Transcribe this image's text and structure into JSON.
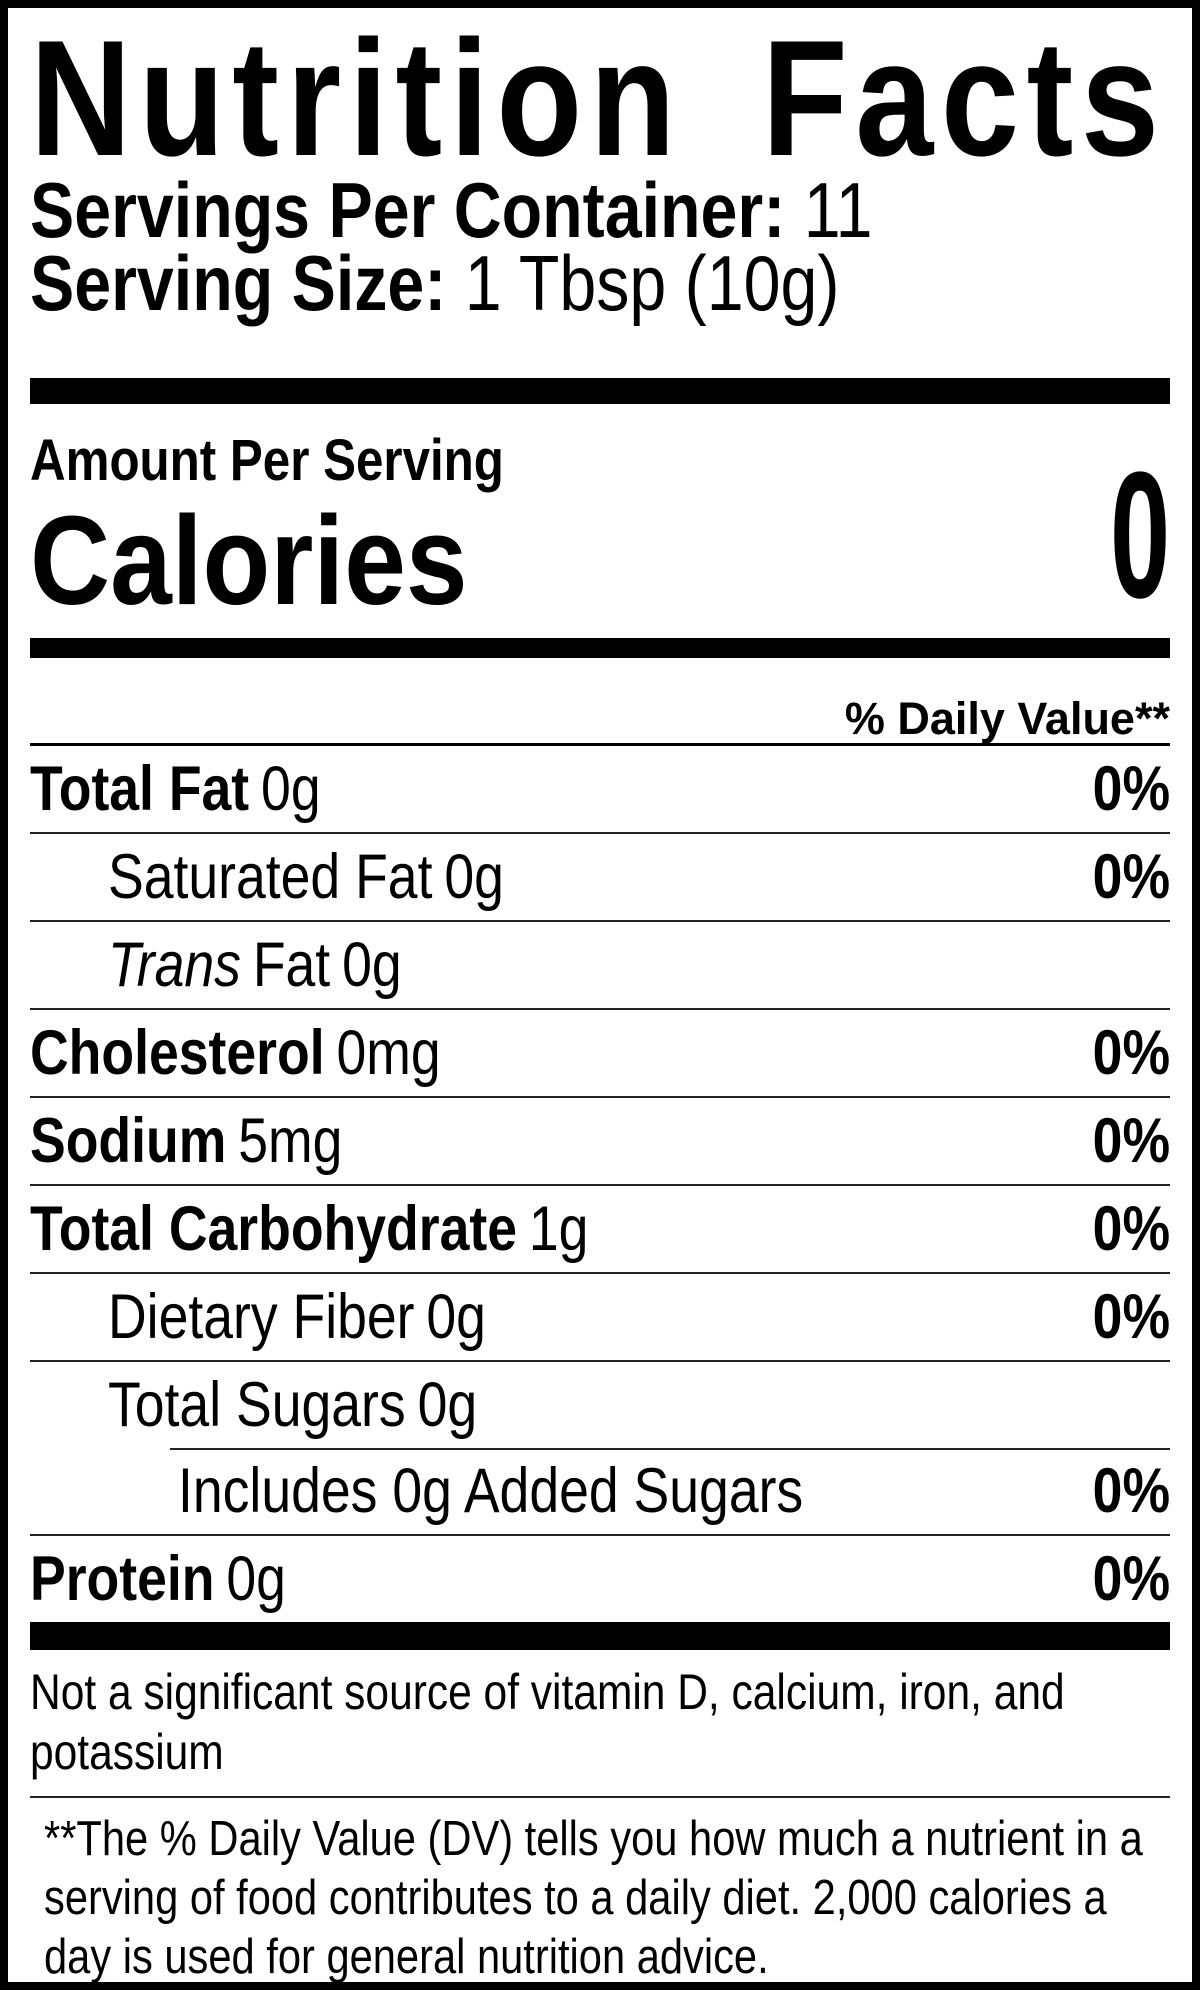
{
  "label": {
    "title": "Nutrition Facts",
    "servings_per_container": {
      "label": "Servings Per Container:",
      "value": "11"
    },
    "serving_size": {
      "label": "Serving Size:",
      "value": "1 Tbsp (10g)"
    },
    "amount_per_serving": "Amount Per Serving",
    "calories": {
      "label": "Calories",
      "value": "0"
    },
    "daily_value_header": "% Daily Value**",
    "rows": [
      {
        "label": "Total Fat",
        "value": "0g",
        "dv": "0%"
      },
      {
        "label": "Saturated Fat",
        "value": "0g",
        "dv": "0%"
      },
      {
        "label_italic": "Trans",
        "label": "Fat",
        "value": "0g",
        "dv": ""
      },
      {
        "label": "Cholesterol",
        "value": "0mg",
        "dv": "0%"
      },
      {
        "label": "Sodium",
        "value": "5mg",
        "dv": "0%"
      },
      {
        "label": "Total Carbohydrate",
        "value": "1g",
        "dv": "0%"
      },
      {
        "label": "Dietary Fiber",
        "value": "0g",
        "dv": "0%"
      },
      {
        "label": "Total Sugars",
        "value": "0g",
        "dv": ""
      },
      {
        "label": "Includes 0g Added Sugars",
        "value": "",
        "dv": "0%"
      },
      {
        "label": "Protein",
        "value": "0g",
        "dv": "0%"
      }
    ],
    "not_significant_note": {
      "line1": "Not a significant source of vitamin D, calcium, iron, and",
      "line2": "potassium"
    },
    "footnote": {
      "line1": "**The % Daily Value (DV) tells you how much a nutrient in a",
      "line2": "serving of food contributes to a daily diet. 2,000 calories a",
      "line3": "day is used for general nutrition advice."
    },
    "colors": {
      "ink": "#000000",
      "background": "#ffffff"
    }
  }
}
